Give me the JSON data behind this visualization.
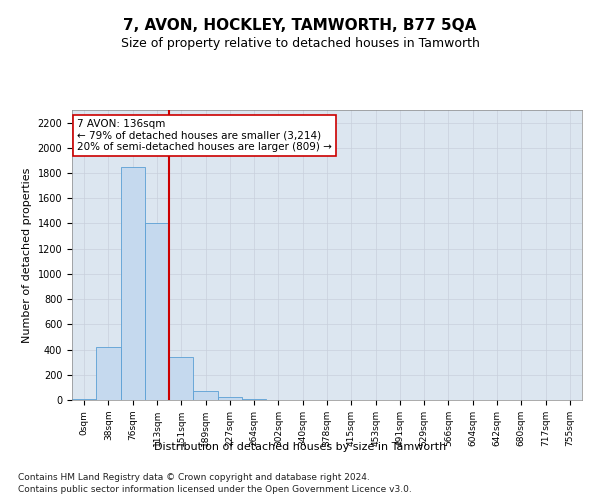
{
  "title": "7, AVON, HOCKLEY, TAMWORTH, B77 5QA",
  "subtitle": "Size of property relative to detached houses in Tamworth",
  "xlabel": "Distribution of detached houses by size in Tamworth",
  "ylabel": "Number of detached properties",
  "footer_line1": "Contains HM Land Registry data © Crown copyright and database right 2024.",
  "footer_line2": "Contains public sector information licensed under the Open Government Licence v3.0.",
  "annotation_line1": "7 AVON: 136sqm",
  "annotation_line2": "← 79% of detached houses are smaller (3,214)",
  "annotation_line3": "20% of semi-detached houses are larger (809) →",
  "bar_color": "#c5d9ee",
  "bar_edge_color": "#5a9fd4",
  "red_line_color": "#cc0000",
  "categories": [
    "0sqm",
    "38sqm",
    "76sqm",
    "113sqm",
    "151sqm",
    "189sqm",
    "227sqm",
    "264sqm",
    "302sqm",
    "340sqm",
    "378sqm",
    "415sqm",
    "453sqm",
    "491sqm",
    "529sqm",
    "566sqm",
    "604sqm",
    "642sqm",
    "680sqm",
    "717sqm",
    "755sqm"
  ],
  "values": [
    5,
    420,
    1850,
    1400,
    340,
    75,
    25,
    8,
    2,
    0,
    0,
    0,
    0,
    0,
    0,
    0,
    0,
    0,
    0,
    0,
    0
  ],
  "ylim": [
    0,
    2300
  ],
  "yticks": [
    0,
    200,
    400,
    600,
    800,
    1000,
    1200,
    1400,
    1600,
    1800,
    2000,
    2200
  ],
  "grid_color": "#c8d0dc",
  "bg_color": "#dce6f0",
  "title_fontsize": 11,
  "subtitle_fontsize": 9,
  "axis_label_fontsize": 8,
  "tick_fontsize": 7,
  "footer_fontsize": 6.5,
  "annotation_fontsize": 7.5
}
